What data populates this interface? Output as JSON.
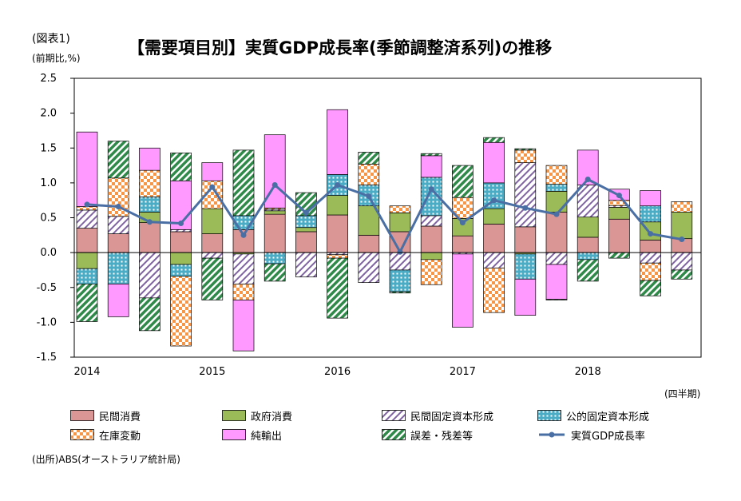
{
  "figure_label": "(図表1)",
  "chart_data": {
    "type": "bar",
    "stacked": true,
    "title": "【需要項目別】実質GDP成長率(季節調整済系列)の推移",
    "ylabel": "(前期比,%)",
    "xlabel": "(四半期)",
    "ylim": [
      -1.5,
      2.5
    ],
    "yticks": [
      "2.5",
      "2.0",
      "1.5",
      "1.0",
      "0.5",
      "0.0",
      "-0.5",
      "-1.0",
      "-1.5"
    ],
    "year_labels": [
      "2014",
      "2015",
      "2016",
      "2017",
      "2018"
    ],
    "grid": false,
    "legend_position": "bottom",
    "categories": [
      "2014Q1",
      "2014Q2",
      "2014Q3",
      "2014Q4",
      "2015Q1",
      "2015Q2",
      "2015Q3",
      "2015Q4",
      "2016Q1",
      "2016Q2",
      "2016Q3",
      "2016Q4",
      "2017Q1",
      "2017Q2",
      "2017Q3",
      "2017Q4",
      "2018Q1",
      "2018Q2",
      "2018Q3",
      "2018Q4"
    ],
    "series": [
      {
        "name": "民間消費",
        "color": "#d99694",
        "pattern": "solid",
        "values": [
          0.35,
          0.27,
          0.43,
          0.3,
          0.27,
          0.33,
          0.55,
          0.3,
          0.54,
          0.25,
          0.3,
          0.38,
          0.24,
          0.41,
          0.37,
          0.58,
          0.22,
          0.48,
          0.18,
          0.2
        ]
      },
      {
        "name": "政府消費",
        "color": "#9bbb59",
        "pattern": "solid",
        "values": [
          -0.23,
          0.0,
          0.15,
          -0.17,
          0.36,
          -0.02,
          0.05,
          0.06,
          0.28,
          0.42,
          0.27,
          -0.1,
          0.25,
          0.22,
          -0.02,
          0.3,
          0.29,
          0.17,
          0.26,
          0.38
        ]
      },
      {
        "name": "民間固定資本形成",
        "color": "#8064a2",
        "pattern": "hatch",
        "values": [
          0.26,
          0.25,
          -0.65,
          0.03,
          -0.08,
          -0.43,
          0.02,
          -0.35,
          -0.03,
          -0.43,
          -0.25,
          0.15,
          -0.02,
          -0.22,
          0.92,
          -0.17,
          0.46,
          0.02,
          -0.15,
          -0.25
        ]
      },
      {
        "name": "公的固定資本形成",
        "color": "#4bacc6",
        "pattern": "grid",
        "values": [
          -0.22,
          -0.45,
          0.22,
          -0.17,
          0.0,
          0.2,
          -0.16,
          0.17,
          0.3,
          0.3,
          -0.31,
          0.55,
          0.0,
          0.37,
          -0.36,
          0.1,
          -0.1,
          0.0,
          0.23,
          0.0
        ]
      },
      {
        "name": "在庫変動",
        "color": "#f79646",
        "pattern": "checker",
        "values": [
          0.05,
          0.55,
          0.38,
          -1.0,
          0.4,
          -0.23,
          0.02,
          0.0,
          -0.05,
          0.3,
          0.1,
          -0.36,
          0.3,
          -0.64,
          0.18,
          0.27,
          0.0,
          0.08,
          -0.25,
          0.15
        ]
      },
      {
        "name": "純輸出",
        "color": "#ff99ff",
        "pattern": "solid",
        "values": [
          1.07,
          -0.47,
          0.32,
          0.7,
          0.26,
          -0.73,
          1.05,
          0.0,
          0.93,
          0.0,
          0.0,
          0.31,
          -1.05,
          0.58,
          -0.52,
          -0.5,
          0.5,
          0.16,
          0.22,
          0.0
        ]
      },
      {
        "name": "誤差・残差等",
        "color": "#2f8a4a",
        "pattern": "diag",
        "values": [
          -0.54,
          0.53,
          -0.47,
          0.4,
          -0.6,
          0.94,
          -0.25,
          0.33,
          -0.86,
          0.17,
          -0.02,
          0.03,
          0.46,
          0.07,
          0.02,
          -0.01,
          -0.31,
          -0.08,
          -0.22,
          -0.13
        ]
      }
    ],
    "line": {
      "name": "実質GDP成長率",
      "color": "#4a6fa5",
      "values": [
        0.69,
        0.66,
        0.44,
        0.42,
        0.94,
        0.25,
        0.97,
        0.57,
        0.97,
        0.81,
        0.01,
        0.91,
        0.43,
        0.75,
        0.64,
        0.55,
        1.05,
        0.82,
        0.27,
        0.19
      ]
    }
  },
  "source": "(出所)ABS(オーストラリア統計局)"
}
